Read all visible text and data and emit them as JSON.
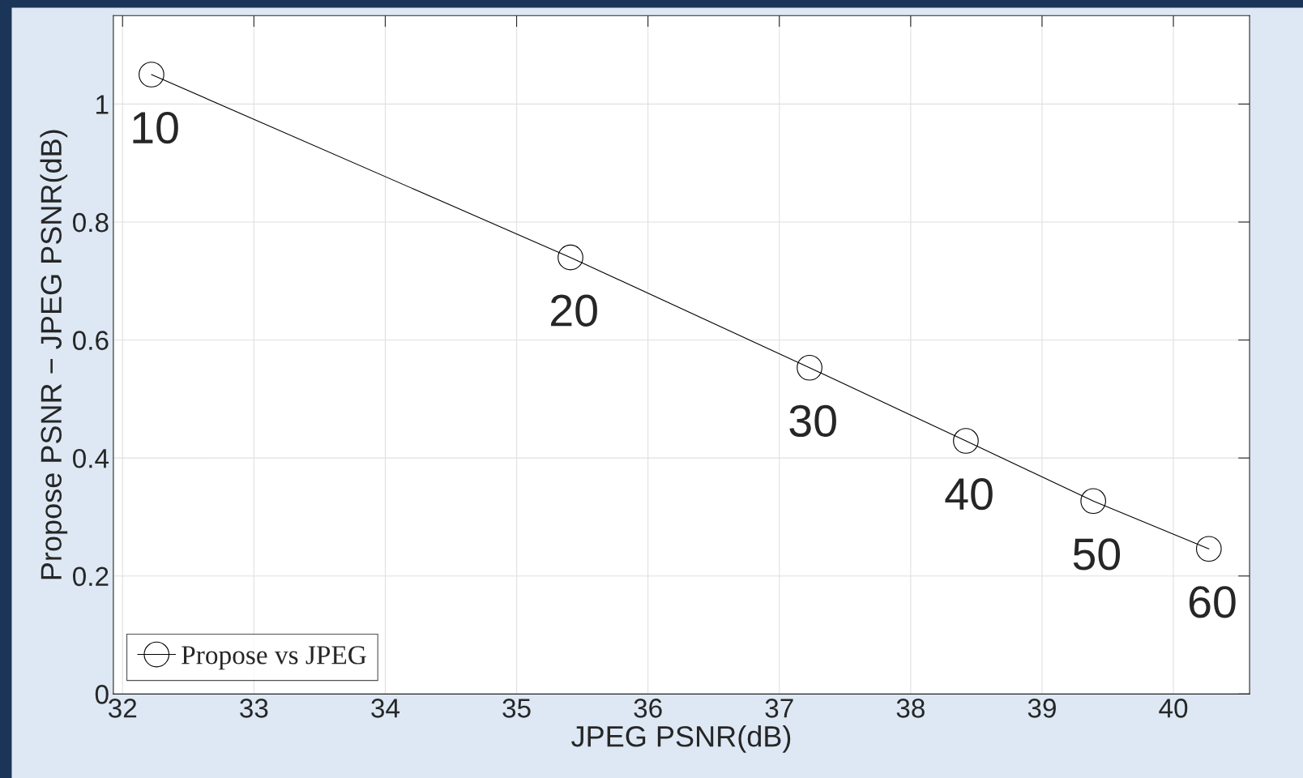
{
  "chart_data": {
    "type": "line",
    "xlabel": "JPEG PSNR(dB)",
    "ylabel": "Propose PSNR − JPEG PSNR(dB)",
    "x": [
      32.22,
      35.41,
      37.23,
      38.42,
      39.39,
      40.27
    ],
    "series": [
      {
        "name": "Propose vs JPEG",
        "color": "#000000",
        "values": [
          1.05,
          0.74,
          0.553,
          0.429,
          0.327,
          0.246
        ]
      }
    ],
    "annotations": [
      {
        "text": "10",
        "x": 32.22,
        "y": 1.05
      },
      {
        "text": "20",
        "x": 35.41,
        "y": 0.74
      },
      {
        "text": "30",
        "x": 37.23,
        "y": 0.553
      },
      {
        "text": "40",
        "x": 38.42,
        "y": 0.429
      },
      {
        "text": "50",
        "x": 39.39,
        "y": 0.327
      },
      {
        "text": "60",
        "x": 40.27,
        "y": 0.246
      }
    ],
    "xlim": [
      31.93,
      40.58
    ],
    "ylim": [
      0,
      1.15
    ],
    "xticks": [
      32,
      33,
      34,
      35,
      36,
      37,
      38,
      39,
      40
    ],
    "yticks": [
      0,
      0.2,
      0.4,
      0.6,
      0.8,
      1
    ],
    "grid": true,
    "legend": "bottom left",
    "marker": "circle",
    "line_style": "solid"
  }
}
